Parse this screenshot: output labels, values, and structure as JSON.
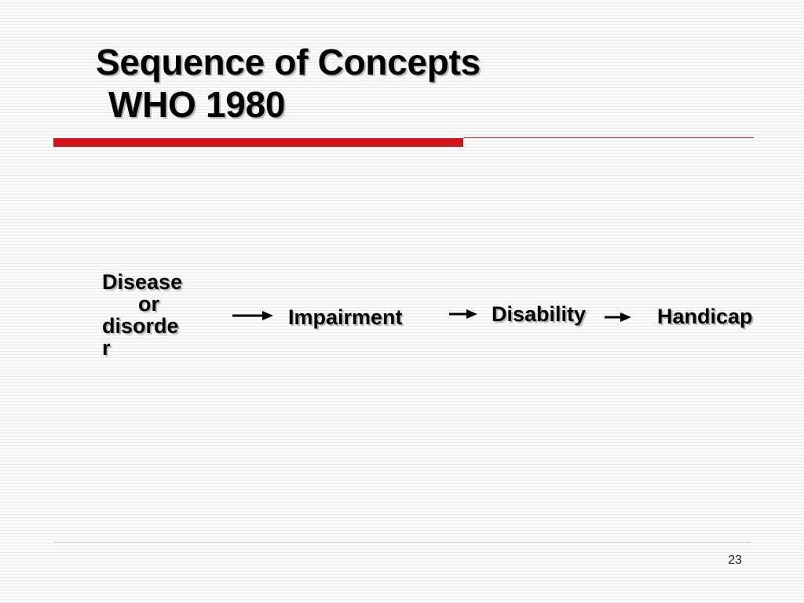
{
  "slide": {
    "title_line1": "Sequence of Concepts",
    "title_line2": "WHO 1980",
    "accent_color": "#d4141c",
    "page_number": "23"
  },
  "diagram": {
    "nodes": {
      "disease": [
        "Disease",
        "or",
        "disorde",
        "r"
      ],
      "impairment": "Impairment",
      "disability": "Disability",
      "handicap": "Handicap"
    },
    "arrows": [
      {
        "from": "disease",
        "to": "impairment"
      },
      {
        "from": "impairment",
        "to": "disability"
      },
      {
        "from": "disability",
        "to": "handicap"
      }
    ]
  }
}
